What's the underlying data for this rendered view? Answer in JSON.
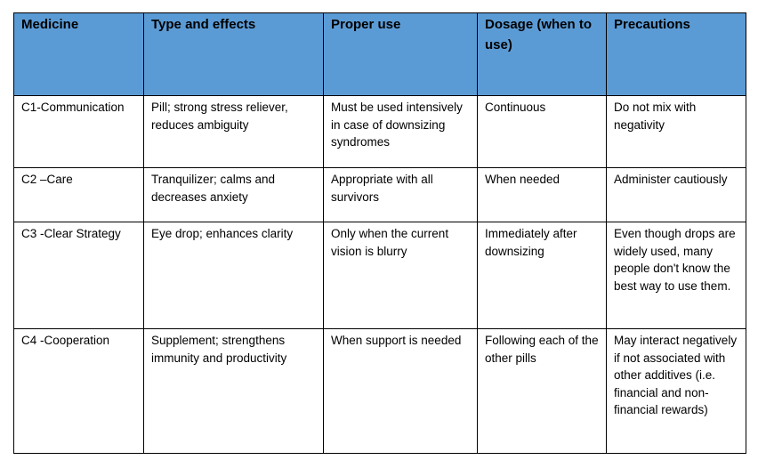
{
  "table": {
    "headers": [
      "Medicine",
      "Type and effects",
      "Proper use",
      "Dosage (when to use)",
      "Precautions"
    ],
    "rows": [
      [
        "C1-Communication",
        "Pill; strong stress reliever, reduces ambiguity",
        "Must be used intensively in case of downsizing syndromes",
        "Continuous",
        "Do not mix with negativity"
      ],
      [
        "C2 –Care",
        "Tranquilizer; calms and decreases anxiety",
        "Appropriate with all survivors",
        "When needed",
        "Administer cautiously"
      ],
      [
        "C3 -Clear Strategy",
        "Eye drop; enhances clarity",
        "Only when the current vision is blurry",
        "Immediately after downsizing",
        "Even though drops are widely used, many people don't know the best way to use them."
      ],
      [
        "C4 -Cooperation",
        "Supplement; strengthens immunity and productivity",
        "When support is needed",
        "Following each of the other pills",
        "May interact negatively if not associated with other additives (i.e. financial and non-financial rewards)"
      ]
    ]
  },
  "colors": {
    "header_background": "#5b9bd5",
    "border": "#000000",
    "text": "#000000"
  }
}
